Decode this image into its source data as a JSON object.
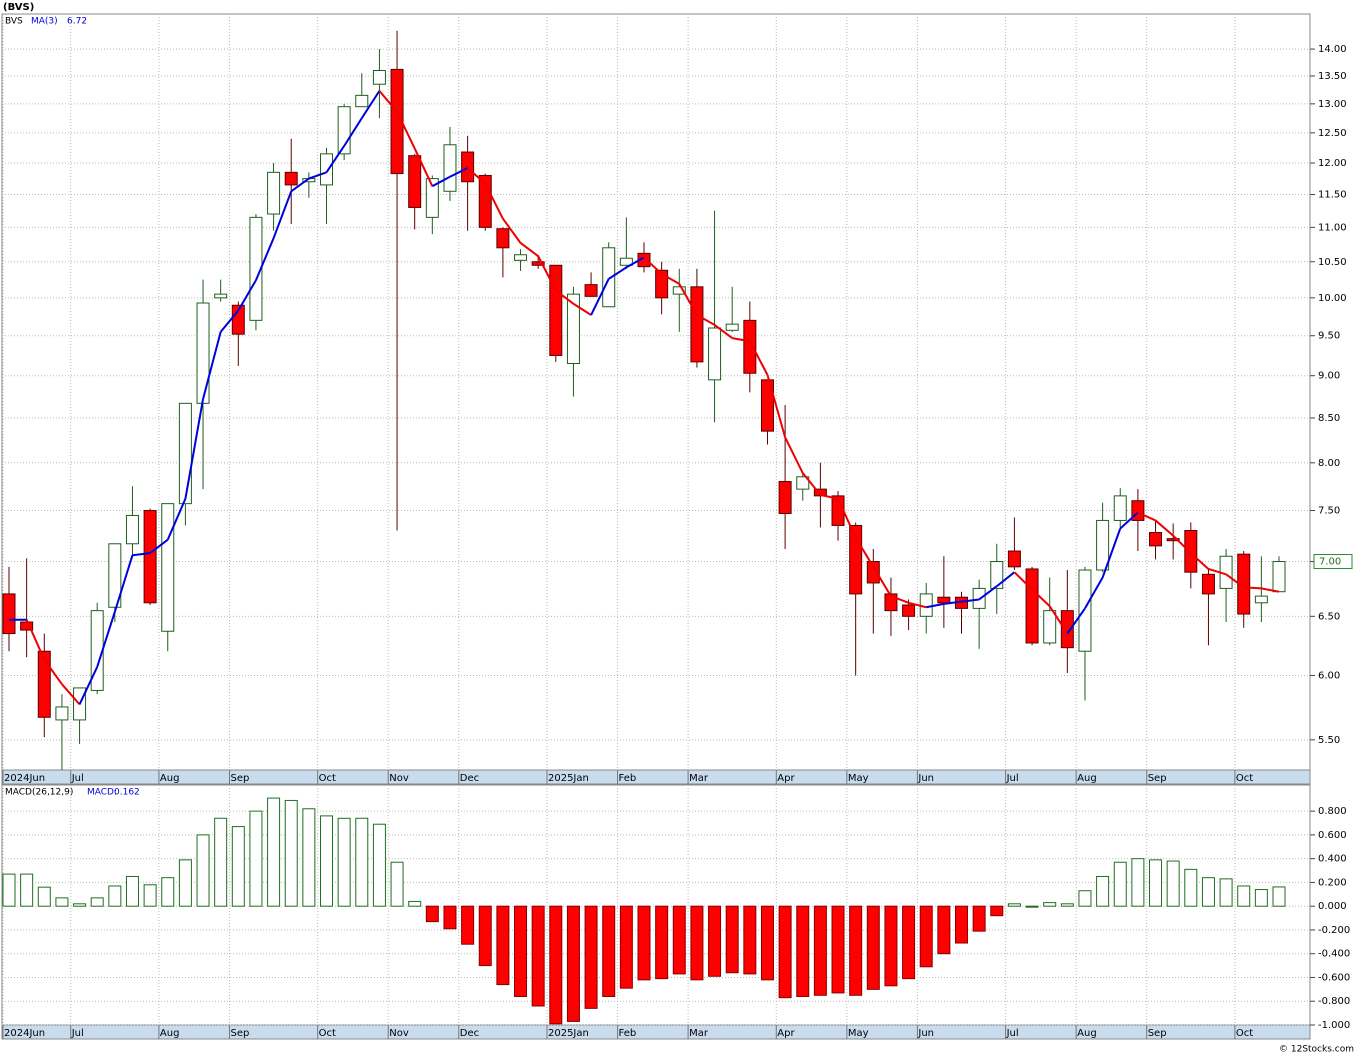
{
  "title": "(BVS)",
  "footer": "© 12Stocks.com",
  "chart_data": [
    {
      "type": "candlestick",
      "categories": [
        "2024Jun",
        null,
        null,
        null,
        "Jul",
        null,
        null,
        null,
        null,
        "Aug",
        null,
        null,
        null,
        "Sep",
        null,
        null,
        null,
        null,
        "Oct",
        null,
        null,
        null,
        "Nov",
        null,
        null,
        null,
        "Dec",
        null,
        null,
        null,
        null,
        "2025Jan",
        null,
        null,
        null,
        "Feb",
        null,
        null,
        null,
        "Mar",
        null,
        null,
        null,
        null,
        "Apr",
        null,
        null,
        null,
        "May",
        null,
        null,
        null,
        "Jun",
        null,
        null,
        null,
        null,
        "Jul",
        null,
        null,
        null,
        "Aug",
        null,
        null,
        null,
        "Sep",
        null,
        null,
        null,
        null,
        "Oct",
        null,
        null
      ],
      "series": [
        {
          "name": "BVS",
          "up_color": "#ffffff",
          "down_color": "#ff0000",
          "up_edge": "#1f5f1f",
          "down_edge": "#5a0000",
          "open": [
            6.7,
            6.45,
            6.2,
            5.65,
            5.65,
            5.88,
            6.58,
            7.17,
            7.5,
            6.37,
            7.57,
            8.67,
            10.0,
            9.9,
            9.7,
            11.2,
            11.85,
            11.7,
            11.65,
            12.15,
            12.95,
            13.35,
            13.62,
            12.12,
            11.15,
            11.55,
            12.18,
            11.8,
            10.98,
            10.52,
            10.5,
            10.45,
            9.15,
            10.18,
            9.88,
            10.45,
            10.62,
            10.38,
            10.05,
            10.15,
            8.95,
            9.57,
            9.7,
            8.95,
            7.8,
            7.72,
            7.72,
            7.65,
            7.35,
            7.0,
            6.7,
            6.6,
            6.5,
            6.67,
            6.67,
            6.57,
            6.75,
            7.1,
            6.93,
            6.27,
            6.55,
            6.2,
            6.92,
            7.4,
            7.6,
            7.28,
            7.22,
            7.3,
            6.88,
            6.75,
            7.07,
            6.62,
            6.72
          ],
          "high": [
            6.95,
            7.03,
            6.35,
            5.85,
            5.9,
            6.62,
            7.17,
            7.75,
            7.52,
            7.57,
            8.67,
            10.25,
            10.25,
            9.95,
            11.2,
            12.0,
            12.4,
            11.85,
            12.25,
            13.0,
            13.55,
            14.0,
            14.35,
            12.15,
            11.8,
            12.6,
            12.45,
            11.83,
            11.0,
            10.68,
            10.6,
            10.45,
            10.15,
            10.35,
            10.78,
            11.15,
            10.78,
            10.5,
            10.4,
            10.4,
            11.25,
            10.15,
            9.95,
            8.95,
            8.65,
            7.9,
            8.0,
            7.7,
            7.38,
            7.12,
            6.85,
            6.65,
            6.8,
            7.05,
            6.72,
            6.83,
            7.17,
            7.43,
            6.95,
            6.85,
            6.92,
            6.95,
            7.58,
            7.73,
            7.72,
            7.4,
            7.37,
            7.38,
            6.93,
            7.12,
            7.1,
            7.05,
            7.05
          ],
          "low": [
            6.2,
            6.15,
            5.52,
            5.28,
            5.47,
            5.85,
            6.45,
            7.05,
            6.6,
            6.2,
            7.35,
            7.72,
            9.95,
            9.12,
            9.57,
            10.95,
            11.05,
            11.45,
            11.05,
            12.05,
            12.95,
            12.75,
            7.3,
            10.97,
            10.9,
            11.4,
            10.95,
            10.95,
            10.28,
            10.37,
            10.4,
            9.17,
            8.75,
            10.02,
            9.88,
            10.4,
            10.35,
            9.78,
            9.55,
            9.1,
            8.45,
            9.55,
            8.8,
            8.2,
            7.12,
            7.6,
            7.33,
            7.2,
            6.0,
            6.35,
            6.33,
            6.38,
            6.35,
            6.4,
            6.35,
            6.22,
            6.52,
            6.92,
            6.25,
            6.25,
            6.02,
            5.8,
            6.9,
            7.33,
            7.1,
            7.02,
            7.02,
            6.75,
            6.25,
            6.45,
            6.4,
            6.45,
            6.72
          ],
          "close": [
            6.35,
            6.38,
            5.67,
            5.75,
            5.9,
            6.55,
            7.17,
            7.45,
            6.62,
            7.57,
            8.67,
            9.93,
            10.05,
            9.52,
            11.15,
            11.85,
            11.65,
            11.75,
            12.15,
            12.95,
            13.15,
            13.6,
            11.83,
            11.3,
            11.75,
            12.3,
            11.7,
            11.0,
            10.7,
            10.6,
            10.45,
            9.25,
            10.05,
            10.02,
            10.7,
            10.55,
            10.43,
            10.0,
            10.15,
            9.17,
            9.6,
            9.65,
            9.03,
            8.35,
            7.47,
            7.85,
            7.65,
            7.35,
            6.7,
            6.8,
            6.55,
            6.5,
            6.7,
            6.62,
            6.57,
            6.75,
            7.0,
            6.95,
            6.27,
            6.55,
            6.23,
            6.92,
            7.4,
            7.65,
            7.4,
            7.15,
            7.2,
            6.9,
            6.7,
            7.05,
            6.52,
            6.68,
            7.0
          ]
        }
      ],
      "overlay": {
        "name": "MA(3)",
        "rise_color": "#0000dd",
        "fall_color": "#ee0000",
        "values": [
          6.47,
          6.47,
          6.13,
          5.93,
          5.77,
          6.07,
          6.54,
          7.06,
          7.08,
          7.21,
          7.62,
          8.72,
          9.55,
          9.83,
          10.24,
          10.84,
          11.55,
          11.75,
          11.85,
          12.28,
          12.75,
          13.23,
          12.86,
          12.24,
          11.63,
          11.78,
          11.92,
          11.67,
          11.13,
          10.77,
          10.58,
          10.1,
          9.92,
          9.77,
          10.26,
          10.42,
          10.56,
          10.33,
          10.19,
          9.77,
          9.64,
          9.47,
          9.43,
          9.01,
          8.28,
          7.89,
          7.66,
          7.62,
          7.23,
          6.95,
          6.68,
          6.62,
          6.58,
          6.61,
          6.63,
          6.65,
          6.77,
          6.9,
          6.74,
          6.59,
          6.35,
          6.57,
          6.85,
          7.32,
          7.48,
          7.4,
          7.25,
          7.08,
          6.93,
          6.88,
          6.76,
          6.75,
          6.72
        ]
      },
      "last_price": {
        "value": 7.0,
        "label": "7.00"
      },
      "log_scale": true,
      "grid": true,
      "ylim": [
        5.28,
        14.68
      ],
      "yticks": [
        {
          "value": 5.5,
          "label": "5.50"
        },
        {
          "value": 6,
          "label": "6.00"
        },
        {
          "value": 6.5,
          "label": "6.50"
        },
        {
          "value": 7,
          "label": "7.00"
        },
        {
          "value": 7.5,
          "label": "7.50"
        },
        {
          "value": 8,
          "label": "8.00"
        },
        {
          "value": 8.5,
          "label": "8.50"
        },
        {
          "value": 9,
          "label": "9.00"
        },
        {
          "value": 9.5,
          "label": "9.50"
        },
        {
          "value": 10,
          "label": "10.00"
        },
        {
          "value": 10.5,
          "label": "10.50"
        },
        {
          "value": 11,
          "label": "11.00"
        },
        {
          "value": 11.5,
          "label": "11.50"
        },
        {
          "value": 12,
          "label": "12.00"
        },
        {
          "value": 12.5,
          "label": "12.50"
        },
        {
          "value": 13,
          "label": "13.00"
        },
        {
          "value": 13.5,
          "label": "13.50"
        },
        {
          "value": 14,
          "label": "14.00"
        }
      ]
    },
    {
      "type": "bar",
      "title": "MACD(26,12,9)",
      "categories": [
        "2024Jun",
        null,
        null,
        null,
        "Jul",
        null,
        null,
        null,
        null,
        "Aug",
        null,
        null,
        null,
        "Sep",
        null,
        null,
        null,
        null,
        "Oct",
        null,
        null,
        null,
        "Nov",
        null,
        null,
        null,
        "Dec",
        null,
        null,
        null,
        null,
        "2025Jan",
        null,
        null,
        null,
        "Feb",
        null,
        null,
        null,
        "Mar",
        null,
        null,
        null,
        null,
        "Apr",
        null,
        null,
        null,
        "May",
        null,
        null,
        null,
        "Jun",
        null,
        null,
        null,
        null,
        "Jul",
        null,
        null,
        null,
        "Aug",
        null,
        null,
        null,
        "Sep",
        null,
        null,
        null,
        null,
        "Oct",
        null,
        null
      ],
      "series": [
        {
          "name": "MACD:",
          "positive_color": "#ffffff",
          "positive_edge": "#1f6f1f",
          "negative_color": "#ff0000",
          "negative_edge": "#880000",
          "values": [
            0.27,
            0.27,
            0.16,
            0.07,
            0.02,
            0.07,
            0.17,
            0.25,
            0.18,
            0.24,
            0.39,
            0.6,
            0.74,
            0.67,
            0.8,
            0.91,
            0.89,
            0.82,
            0.76,
            0.74,
            0.74,
            0.69,
            0.37,
            0.04,
            -0.13,
            -0.19,
            -0.32,
            -0.5,
            -0.66,
            -0.76,
            -0.84,
            -0.99,
            -0.97,
            -0.86,
            -0.76,
            -0.69,
            -0.62,
            -0.61,
            -0.57,
            -0.62,
            -0.59,
            -0.56,
            -0.57,
            -0.62,
            -0.77,
            -0.76,
            -0.75,
            -0.73,
            -0.75,
            -0.7,
            -0.67,
            -0.61,
            -0.51,
            -0.4,
            -0.31,
            -0.21,
            -0.08,
            0.02,
            0.0,
            0.03,
            0.02,
            0.13,
            0.25,
            0.37,
            0.4,
            0.39,
            0.38,
            0.31,
            0.24,
            0.23,
            0.17,
            0.14,
            0.162
          ]
        }
      ],
      "grid": true,
      "ylim": [
        -1.0,
        1.02
      ],
      "yticks": [
        {
          "value": -1,
          "label": "-1.000"
        },
        {
          "value": -0.8,
          "label": "-0.800"
        },
        {
          "value": -0.6,
          "label": "-0.600"
        },
        {
          "value": -0.4,
          "label": "-0.400"
        },
        {
          "value": -0.2,
          "label": "-0.200"
        },
        {
          "value": 0,
          "label": "0.000"
        },
        {
          "value": 0.2,
          "label": "0.200"
        },
        {
          "value": 0.4,
          "label": "0.400"
        },
        {
          "value": 0.6,
          "label": "0.600"
        },
        {
          "value": 0.8,
          "label": "0.800"
        }
      ]
    }
  ]
}
